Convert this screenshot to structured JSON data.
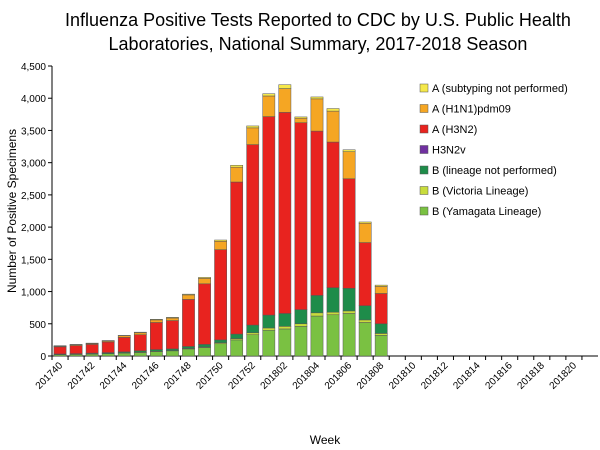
{
  "chart_data": {
    "type": "stacked-bar",
    "title": [
      "Influenza Positive Tests Reported to CDC by U.S. Public Health",
      "Laboratories, National Summary, 2017-2018 Season"
    ],
    "x_label": "Week",
    "y_label": "Number of Positive Specimens",
    "categories": [
      "201740",
      null,
      "201742",
      null,
      "201744",
      null,
      "201746",
      null,
      "201748",
      null,
      "201750",
      null,
      "201752",
      null,
      "201802",
      null,
      "201804",
      null,
      "201806",
      null,
      "201808",
      null,
      "201810",
      null,
      "201812",
      null,
      "201814",
      null,
      "201816",
      null,
      "201818",
      null,
      "201820",
      null
    ],
    "ylim": [
      0,
      4500
    ],
    "yticks": [
      0,
      500,
      {
        "value": 1000,
        "label": "1,000"
      },
      {
        "value": 1500,
        "label": "1,500"
      },
      {
        "value": 2000,
        "label": "2,000"
      },
      {
        "value": 2500,
        "label": "2,500"
      },
      {
        "value": 3000,
        "label": "3,000"
      },
      {
        "value": 3500,
        "label": "3,500"
      },
      {
        "value": 4000,
        "label": "4,000"
      },
      {
        "value": 4500,
        "label": "4,500"
      }
    ],
    "series": [
      {
        "name": "B (Yamagata Lineage)",
        "color": "#7ac142",
        "values": [
          20,
          25,
          30,
          35,
          45,
          55,
          70,
          80,
          110,
          130,
          190,
          250,
          330,
          400,
          420,
          460,
          620,
          640,
          660,
          520,
          320,
          0,
          0,
          0,
          0,
          0,
          0,
          0,
          0,
          0,
          0,
          0,
          0,
          0
        ]
      },
      {
        "name": "B (Victoria Lineage)",
        "color": "#c8dc3c",
        "values": [
          2,
          2,
          3,
          3,
          4,
          5,
          5,
          5,
          8,
          10,
          15,
          20,
          30,
          35,
          40,
          40,
          50,
          40,
          40,
          40,
          30,
          0,
          0,
          0,
          0,
          0,
          0,
          0,
          0,
          0,
          0,
          0,
          0,
          0
        ]
      },
      {
        "name": "B (lineage not performed)",
        "color": "#1e8c4a",
        "values": [
          10,
          10,
          12,
          15,
          15,
          20,
          25,
          25,
          30,
          40,
          45,
          70,
          120,
          200,
          200,
          220,
          270,
          380,
          350,
          220,
          150,
          0,
          0,
          0,
          0,
          0,
          0,
          0,
          0,
          0,
          0,
          0,
          0,
          0
        ]
      },
      {
        "name": "H3N2v",
        "color": "#7030a0",
        "values": [
          0,
          0,
          0,
          0,
          0,
          0,
          0,
          0,
          0,
          0,
          0,
          0,
          0,
          0,
          0,
          0,
          0,
          0,
          0,
          0,
          0,
          0,
          0,
          0,
          0,
          0,
          0,
          0,
          0,
          0,
          0,
          0,
          0,
          0
        ]
      },
      {
        "name": "A (H3N2)",
        "color": "#e8231f",
        "values": [
          110,
          125,
          135,
          165,
          225,
          250,
          420,
          440,
          730,
          940,
          1400,
          2360,
          2800,
          3080,
          3120,
          2900,
          2550,
          2260,
          1700,
          980,
          470,
          0,
          0,
          0,
          0,
          0,
          0,
          0,
          0,
          0,
          0,
          0,
          0,
          0
        ]
      },
      {
        "name": "A (H1N1)pdm09",
        "color": "#f5a623",
        "values": [
          10,
          12,
          14,
          16,
          25,
          30,
          40,
          40,
          70,
          85,
          130,
          230,
          260,
          320,
          370,
          70,
          500,
          480,
          420,
          300,
          110,
          0,
          0,
          0,
          0,
          0,
          0,
          0,
          0,
          0,
          0,
          0,
          0,
          0
        ]
      },
      {
        "name": "A (subtyping not performed)",
        "color": "#f5e84a",
        "values": [
          8,
          6,
          6,
          6,
          6,
          10,
          10,
          10,
          12,
          15,
          20,
          30,
          30,
          35,
          60,
          20,
          30,
          40,
          30,
          20,
          20,
          0,
          0,
          0,
          0,
          0,
          0,
          0,
          0,
          0,
          0,
          0,
          0,
          0
        ]
      }
    ]
  }
}
